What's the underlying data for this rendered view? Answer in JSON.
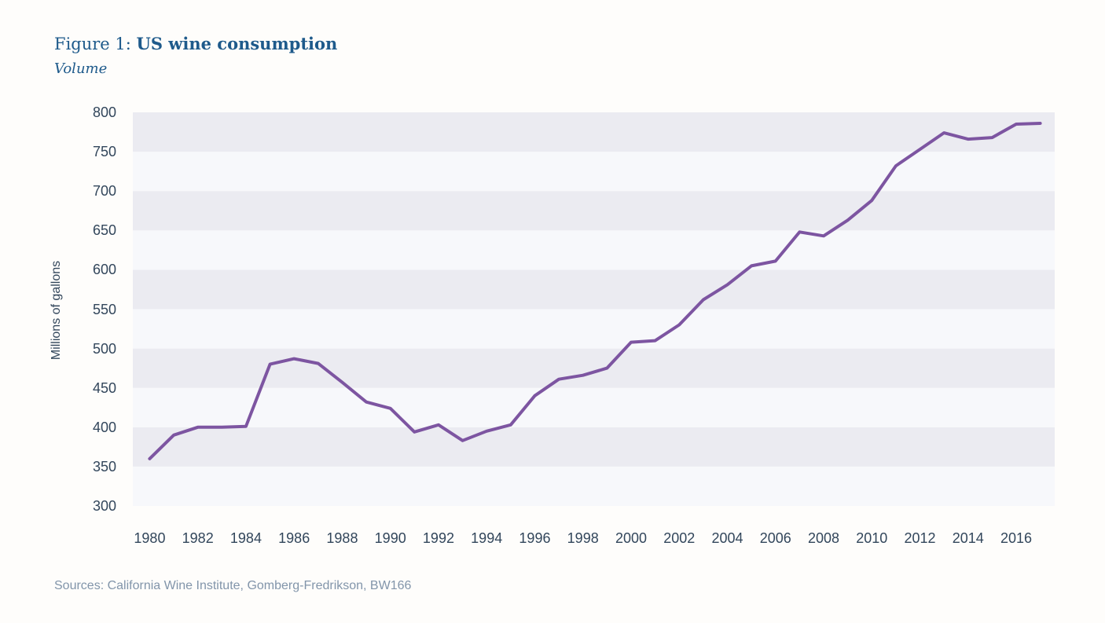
{
  "header": {
    "figure_label": "Figure 1: ",
    "title": "US wine consumption",
    "subtitle": "Volume"
  },
  "footer": {
    "sources": "Sources: California Wine Institute, Gomberg-Fredrikson, BW166"
  },
  "chart_data": {
    "type": "line",
    "title": "Figure 1: US wine consumption",
    "subtitle": "Volume",
    "xlabel": "",
    "ylabel": "Millions of gallons",
    "x": [
      1980,
      1981,
      1982,
      1983,
      1984,
      1985,
      1986,
      1987,
      1988,
      1989,
      1990,
      1991,
      1992,
      1993,
      1994,
      1995,
      1996,
      1997,
      1998,
      1999,
      2000,
      2001,
      2002,
      2003,
      2004,
      2005,
      2006,
      2007,
      2008,
      2009,
      2010,
      2011,
      2012,
      2013,
      2014,
      2015,
      2016,
      2017
    ],
    "series": [
      {
        "name": "US wine consumption volume",
        "color": "#7d55a1",
        "values": [
          360,
          390,
          400,
          400,
          401,
          480,
          487,
          481,
          457,
          432,
          424,
          394,
          403,
          383,
          395,
          403,
          440,
          461,
          466,
          475,
          508,
          510,
          530,
          562,
          581,
          605,
          611,
          648,
          643,
          663,
          688,
          732,
          753,
          774,
          766,
          768,
          785,
          786
        ]
      }
    ],
    "ylim": [
      300,
      800
    ],
    "xlim": [
      1979.3,
      2017.6
    ],
    "y_ticks": [
      300,
      350,
      400,
      450,
      500,
      550,
      600,
      650,
      700,
      750,
      800
    ],
    "x_ticks": [
      1980,
      1982,
      1984,
      1986,
      1988,
      1990,
      1992,
      1994,
      1996,
      1998,
      2000,
      2002,
      2004,
      2006,
      2008,
      2010,
      2012,
      2014,
      2016
    ],
    "grid": "alternating-horizontal-bands",
    "band_colors": {
      "light": "#f7f8fb",
      "dark": "#ebebf1"
    },
    "legend_position": "none"
  }
}
